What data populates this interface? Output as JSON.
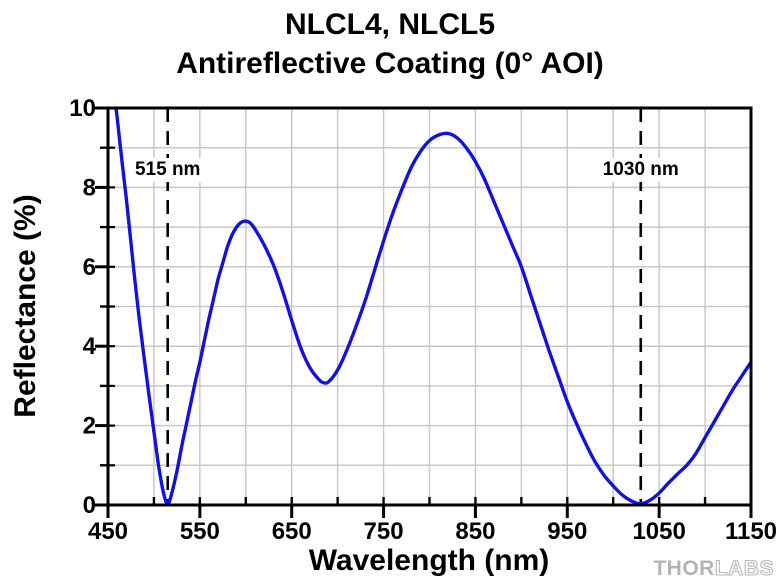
{
  "title": {
    "line1": "NLCL4, NLCL5",
    "line2": "Antireflective Coating (0° AOI)"
  },
  "branding": {
    "logo_part1": "THOR",
    "logo_part2": "LABS"
  },
  "chart_data": {
    "type": "line",
    "title": "NLCL4, NLCL5 Antireflective Coating (0° AOI)",
    "xlabel": "Wavelength (nm)",
    "ylabel": "Reflectance (%)",
    "xlim": [
      450,
      1150
    ],
    "ylim": [
      0,
      10
    ],
    "x_major_ticks": [
      450,
      550,
      650,
      750,
      850,
      950,
      1050,
      1150
    ],
    "x_minor_step": 50,
    "y_major_ticks": [
      0,
      2,
      4,
      6,
      8,
      10
    ],
    "y_minor_step": 1,
    "grid": true,
    "grid_step_x": 50,
    "grid_step_y": 1,
    "line_color": "#1212dd",
    "grid_color": "#c9c9c9",
    "axis_color": "#000000",
    "legend": "none",
    "annotations": [
      {
        "label": "515 nm",
        "x": 515,
        "style": "dashed-vertical"
      },
      {
        "label": "1030 nm",
        "x": 1030,
        "style": "dashed-vertical"
      }
    ],
    "series": [
      {
        "name": "Reflectance",
        "x": [
          450,
          455,
          460,
          465,
          470,
          475,
          480,
          485,
          490,
          495,
          500,
          505,
          510,
          515,
          520,
          525,
          530,
          535,
          540,
          545,
          550,
          555,
          560,
          565,
          570,
          575,
          580,
          585,
          590,
          595,
          600,
          605,
          610,
          620,
          630,
          640,
          650,
          660,
          670,
          680,
          685,
          690,
          700,
          710,
          720,
          730,
          740,
          750,
          760,
          770,
          780,
          790,
          800,
          810,
          820,
          830,
          840,
          850,
          860,
          870,
          880,
          890,
          900,
          910,
          920,
          930,
          940,
          950,
          960,
          970,
          980,
          990,
          1000,
          1010,
          1020,
          1030,
          1040,
          1050,
          1060,
          1070,
          1080,
          1090,
          1100,
          1110,
          1120,
          1130,
          1140,
          1150
        ],
        "y": [
          11.6,
          10.7,
          9.75,
          8.7,
          7.7,
          6.6,
          5.5,
          4.5,
          3.6,
          2.7,
          1.85,
          1.0,
          0.35,
          0.02,
          0.35,
          0.85,
          1.45,
          2.0,
          2.55,
          3.1,
          3.6,
          4.15,
          4.7,
          5.2,
          5.7,
          6.1,
          6.5,
          6.8,
          7.0,
          7.12,
          7.15,
          7.1,
          6.95,
          6.55,
          6.05,
          5.4,
          4.65,
          3.95,
          3.45,
          3.15,
          3.08,
          3.1,
          3.4,
          3.9,
          4.5,
          5.15,
          5.9,
          6.65,
          7.35,
          7.95,
          8.5,
          8.9,
          9.18,
          9.32,
          9.36,
          9.25,
          9.0,
          8.65,
          8.2,
          7.65,
          7.1,
          6.55,
          6.0,
          5.3,
          4.6,
          3.9,
          3.25,
          2.6,
          2.05,
          1.55,
          1.1,
          0.75,
          0.48,
          0.25,
          0.1,
          0.03,
          0.12,
          0.3,
          0.55,
          0.78,
          1.0,
          1.3,
          1.7,
          2.1,
          2.5,
          2.9,
          3.25,
          3.6
        ]
      }
    ]
  }
}
